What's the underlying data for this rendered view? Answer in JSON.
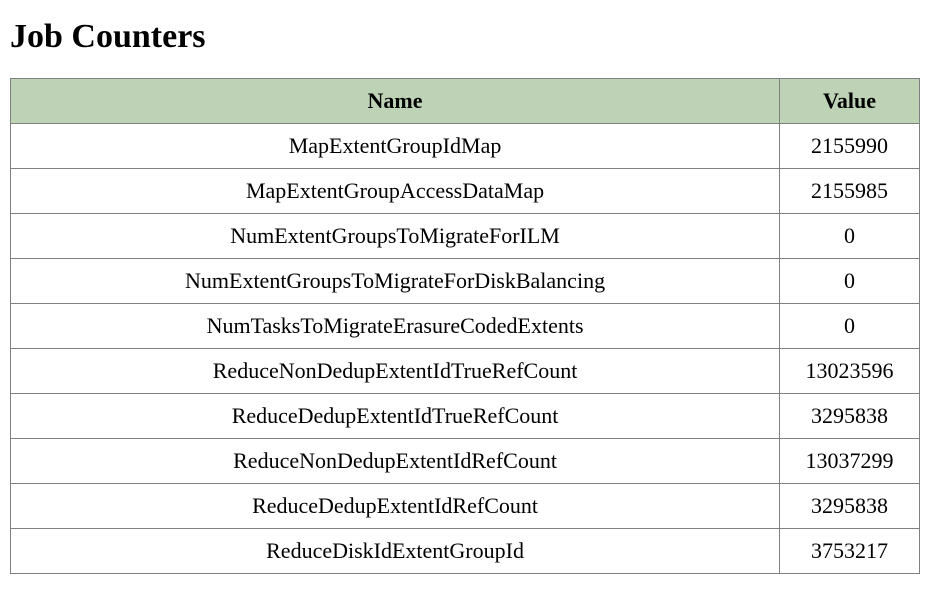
{
  "page": {
    "title": "Job Counters"
  },
  "table": {
    "columns": [
      "Name",
      "Value"
    ],
    "rows": [
      {
        "name": "MapExtentGroupIdMap",
        "value": "2155990"
      },
      {
        "name": "MapExtentGroupAccessDataMap",
        "value": "2155985"
      },
      {
        "name": "NumExtentGroupsToMigrateForILM",
        "value": "0"
      },
      {
        "name": "NumExtentGroupsToMigrateForDiskBalancing",
        "value": "0"
      },
      {
        "name": "NumTasksToMigrateErasureCodedExtents",
        "value": "0"
      },
      {
        "name": "ReduceNonDedupExtentIdTrueRefCount",
        "value": "13023596"
      },
      {
        "name": "ReduceDedupExtentIdTrueRefCount",
        "value": "3295838"
      },
      {
        "name": "ReduceNonDedupExtentIdRefCount",
        "value": "13037299"
      },
      {
        "name": "ReduceDedupExtentIdRefCount",
        "value": "3295838"
      },
      {
        "name": "ReduceDiskIdExtentGroupId",
        "value": "3753217"
      }
    ]
  }
}
